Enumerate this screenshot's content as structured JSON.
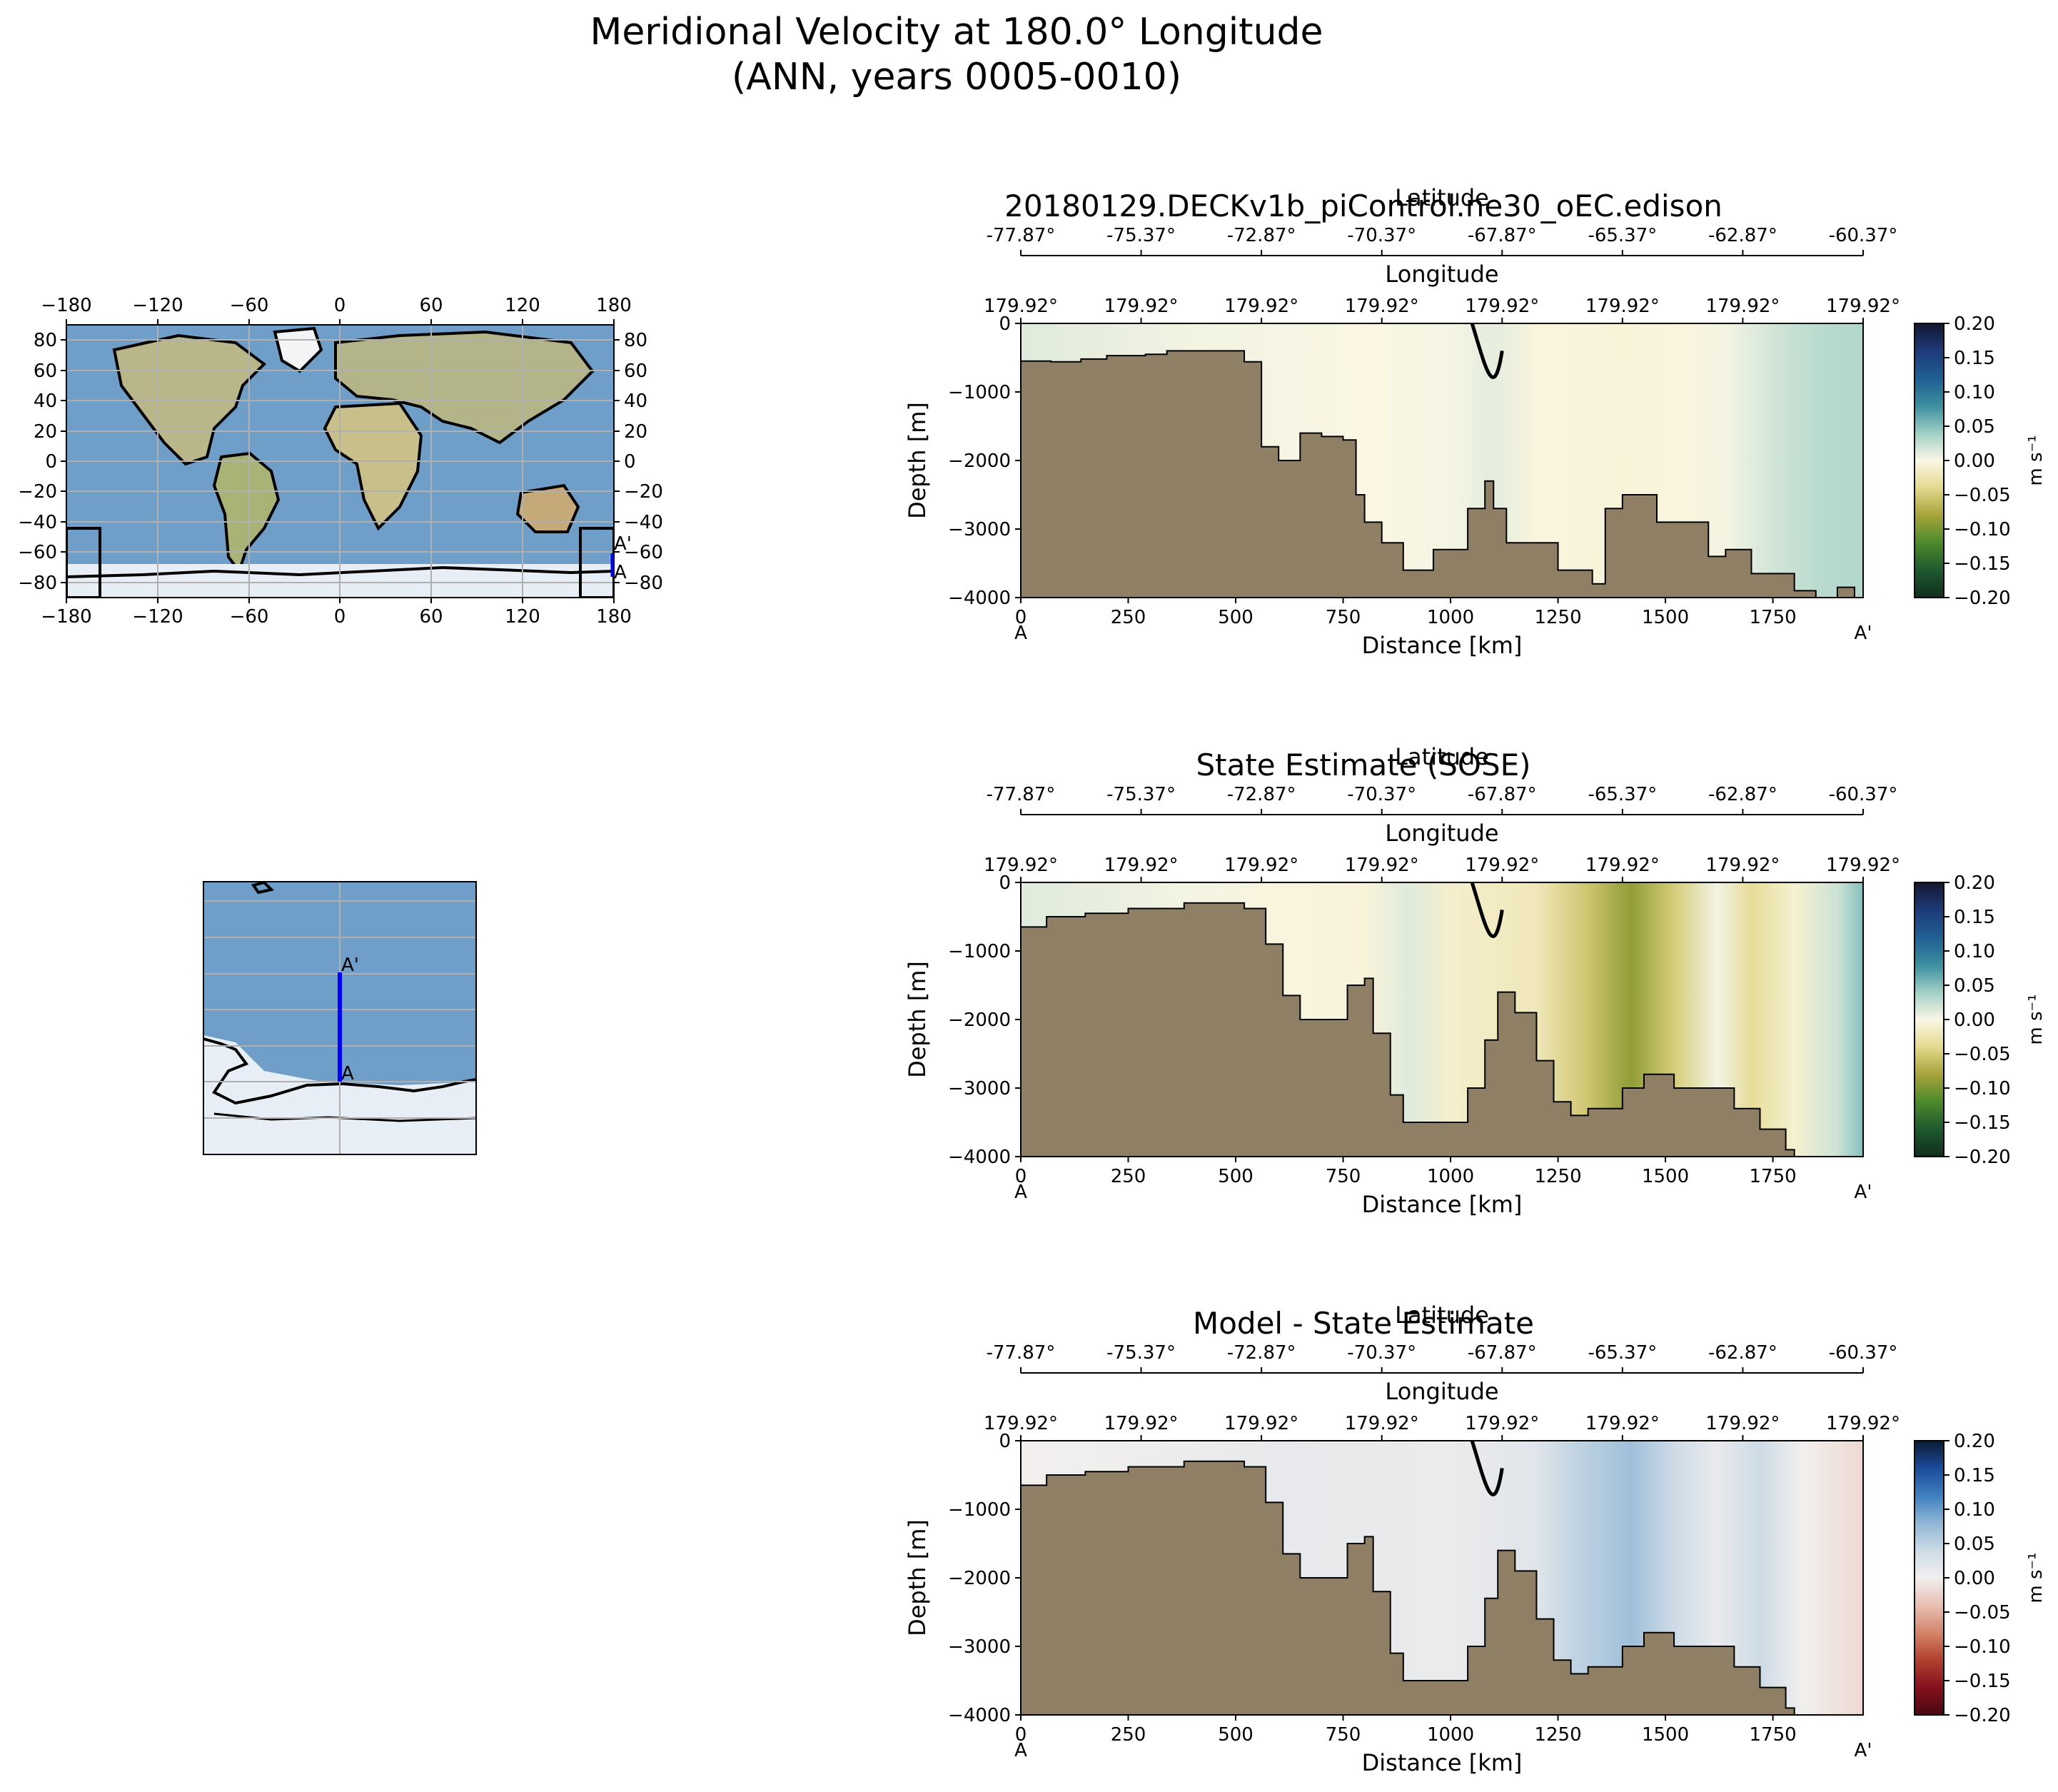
{
  "figure": {
    "title_line1": "Meridional Velocity at 180.0° Longitude",
    "title_line2": "(ANN, years 0005-0010)"
  },
  "colors": {
    "land": "#8f7f65",
    "ocean_map": "#6f9fc8",
    "ice": "#e8eef6",
    "transect": "#0000ff",
    "grid": "#b0b0b0"
  },
  "global_map": {
    "x_ticks": [
      "−180",
      "−120",
      "−60",
      "0",
      "60",
      "120",
      "180"
    ],
    "y_ticks": [
      "80",
      "60",
      "40",
      "20",
      "0",
      "−20",
      "−40",
      "−60",
      "−80"
    ],
    "label_a": "A",
    "label_a_prime": "A'"
  },
  "inset_map": {
    "label_a": "A",
    "label_a_prime": "A'"
  },
  "chart_data": [
    {
      "type": "heatmap",
      "id": "model",
      "title": "20180129.DECKv1b_piControl.ne30_oEC.edison",
      "xlabel": "Distance [km]",
      "ylabel": "Depth [m]",
      "top_axis1_label": "Latitude",
      "top_axis2_label": "Longitude",
      "xlim": [
        0,
        1960
      ],
      "ylim": [
        -4000,
        0
      ],
      "x_ticks": [
        "0",
        "250",
        "500",
        "750",
        "1000",
        "1250",
        "1500",
        "1750"
      ],
      "y_ticks": [
        "0",
        "−1000",
        "−2000",
        "−3000",
        "−4000"
      ],
      "lat_ticks": [
        "-77.87°",
        "-75.37°",
        "-72.87°",
        "-70.37°",
        "-67.87°",
        "-65.37°",
        "-62.87°",
        "-60.37°"
      ],
      "lon_ticks": [
        "179.92°",
        "179.92°",
        "179.92°",
        "179.92°",
        "179.92°",
        "179.92°",
        "179.92°",
        "179.92°"
      ],
      "end_labels": [
        "A",
        "A'"
      ],
      "colorbar": {
        "label": "m s⁻¹",
        "ticks": [
          "0.20",
          "0.15",
          "0.10",
          "0.05",
          "0.00",
          "−0.05",
          "−0.10",
          "−0.15",
          "−0.20"
        ],
        "colors": [
          "#14172f",
          "#1e3a7a",
          "#1f5f93",
          "#3b8ea0",
          "#9fcfc5",
          "#fbf7e6",
          "#e4d98e",
          "#a8a33a",
          "#4c8a2c",
          "#1d5a2e",
          "#102e1c"
        ]
      },
      "bathymetry": [
        [
          0,
          -550
        ],
        [
          70,
          -560
        ],
        [
          140,
          -520
        ],
        [
          200,
          -470
        ],
        [
          290,
          -450
        ],
        [
          340,
          -400
        ],
        [
          470,
          -400
        ],
        [
          520,
          -560
        ],
        [
          560,
          -1800
        ],
        [
          600,
          -2000
        ],
        [
          650,
          -1600
        ],
        [
          700,
          -1650
        ],
        [
          750,
          -1700
        ],
        [
          780,
          -2500
        ],
        [
          800,
          -2900
        ],
        [
          840,
          -3200
        ],
        [
          890,
          -3600
        ],
        [
          960,
          -3300
        ],
        [
          1000,
          -3300
        ],
        [
          1040,
          -2700
        ],
        [
          1080,
          -2300
        ],
        [
          1100,
          -2700
        ],
        [
          1130,
          -3200
        ],
        [
          1200,
          -3200
        ],
        [
          1250,
          -3600
        ],
        [
          1300,
          -3600
        ],
        [
          1330,
          -3800
        ],
        [
          1360,
          -2700
        ],
        [
          1400,
          -2500
        ],
        [
          1480,
          -2900
        ],
        [
          1570,
          -2900
        ],
        [
          1600,
          -3400
        ],
        [
          1640,
          -3300
        ],
        [
          1700,
          -3650
        ],
        [
          1760,
          -3650
        ],
        [
          1800,
          -3900
        ],
        [
          1850,
          -4000
        ],
        [
          1900,
          -3850
        ]
      ],
      "field": [
        [
          0,
          0.012
        ],
        [
          200,
          0.008
        ],
        [
          400,
          0.004
        ],
        [
          600,
          0.002
        ],
        [
          800,
          -0.002
        ],
        [
          1000,
          0.002
        ],
        [
          1100,
          0.01
        ],
        [
          1200,
          -0.004
        ],
        [
          1400,
          -0.006
        ],
        [
          1550,
          -0.004
        ],
        [
          1650,
          0.004
        ],
        [
          1750,
          0.018
        ],
        [
          1850,
          0.028
        ],
        [
          1960,
          0.032
        ]
      ]
    },
    {
      "type": "heatmap",
      "id": "obs",
      "title": "State Estimate (SOSE)",
      "xlabel": "Distance [km]",
      "ylabel": "Depth [m]",
      "top_axis1_label": "Latitude",
      "top_axis2_label": "Longitude",
      "xlim": [
        0,
        1960
      ],
      "ylim": [
        -4000,
        0
      ],
      "x_ticks": [
        "0",
        "250",
        "500",
        "750",
        "1000",
        "1250",
        "1500",
        "1750"
      ],
      "y_ticks": [
        "0",
        "−1000",
        "−2000",
        "−3000",
        "−4000"
      ],
      "lat_ticks": [
        "-77.87°",
        "-75.37°",
        "-72.87°",
        "-70.37°",
        "-67.87°",
        "-65.37°",
        "-62.87°",
        "-60.37°"
      ],
      "lon_ticks": [
        "179.92°",
        "179.92°",
        "179.92°",
        "179.92°",
        "179.92°",
        "179.92°",
        "179.92°",
        "179.92°"
      ],
      "end_labels": [
        "A",
        "A'"
      ],
      "colorbar": {
        "label": "m s⁻¹",
        "ticks": [
          "0.20",
          "0.15",
          "0.10",
          "0.05",
          "0.00",
          "−0.05",
          "−0.10",
          "−0.15",
          "−0.20"
        ],
        "colors": [
          "#14172f",
          "#1e3a7a",
          "#1f5f93",
          "#3b8ea0",
          "#9fcfc5",
          "#fbf7e6",
          "#e4d98e",
          "#a8a33a",
          "#4c8a2c",
          "#1d5a2e",
          "#102e1c"
        ]
      },
      "bathymetry": [
        [
          0,
          -650
        ],
        [
          60,
          -500
        ],
        [
          150,
          -450
        ],
        [
          250,
          -380
        ],
        [
          380,
          -300
        ],
        [
          480,
          -300
        ],
        [
          520,
          -380
        ],
        [
          570,
          -900
        ],
        [
          610,
          -1650
        ],
        [
          650,
          -2000
        ],
        [
          720,
          -2000
        ],
        [
          760,
          -1500
        ],
        [
          800,
          -1400
        ],
        [
          820,
          -2200
        ],
        [
          860,
          -3100
        ],
        [
          890,
          -3500
        ],
        [
          1020,
          -3500
        ],
        [
          1040,
          -3000
        ],
        [
          1080,
          -2300
        ],
        [
          1110,
          -1600
        ],
        [
          1150,
          -1900
        ],
        [
          1200,
          -2600
        ],
        [
          1240,
          -3200
        ],
        [
          1280,
          -3400
        ],
        [
          1320,
          -3300
        ],
        [
          1400,
          -3000
        ],
        [
          1450,
          -2800
        ],
        [
          1520,
          -3000
        ],
        [
          1600,
          -3000
        ],
        [
          1660,
          -3300
        ],
        [
          1720,
          -3600
        ],
        [
          1780,
          -3900
        ],
        [
          1800,
          -4000
        ]
      ],
      "field": [
        [
          0,
          0.012
        ],
        [
          200,
          0.008
        ],
        [
          400,
          0.003
        ],
        [
          600,
          -0.004
        ],
        [
          800,
          -0.006
        ],
        [
          900,
          0.012
        ],
        [
          1000,
          -0.012
        ],
        [
          1200,
          -0.02
        ],
        [
          1320,
          -0.055
        ],
        [
          1420,
          -0.09
        ],
        [
          1520,
          -0.05
        ],
        [
          1620,
          0.004
        ],
        [
          1700,
          -0.035
        ],
        [
          1800,
          -0.01
        ],
        [
          1900,
          0.02
        ],
        [
          1960,
          0.05
        ]
      ]
    },
    {
      "type": "heatmap",
      "id": "diff",
      "title": "Model - State Estimate",
      "xlabel": "Distance [km]",
      "ylabel": "Depth [m]",
      "top_axis1_label": "Latitude",
      "top_axis2_label": "Longitude",
      "xlim": [
        0,
        1960
      ],
      "ylim": [
        -4000,
        0
      ],
      "x_ticks": [
        "0",
        "250",
        "500",
        "750",
        "1000",
        "1250",
        "1500",
        "1750"
      ],
      "y_ticks": [
        "0",
        "−1000",
        "−2000",
        "−3000",
        "−4000"
      ],
      "lat_ticks": [
        "-77.87°",
        "-75.37°",
        "-72.87°",
        "-70.37°",
        "-67.87°",
        "-65.37°",
        "-62.87°",
        "-60.37°"
      ],
      "lon_ticks": [
        "179.92°",
        "179.92°",
        "179.92°",
        "179.92°",
        "179.92°",
        "179.92°",
        "179.92°",
        "179.92°"
      ],
      "end_labels": [
        "A",
        "A'"
      ],
      "colorbar": {
        "label": "m s⁻¹",
        "ticks": [
          "0.20",
          "0.15",
          "0.10",
          "0.05",
          "0.00",
          "−0.05",
          "−0.10",
          "−0.15",
          "−0.20"
        ],
        "colors": [
          "#0c1a36",
          "#1b4b9a",
          "#3f7fc0",
          "#8fb6d6",
          "#cddbe6",
          "#f2efee",
          "#e8c0b4",
          "#d4856a",
          "#b0402f",
          "#85111e",
          "#4b0712"
        ]
      },
      "bathymetry": [
        [
          0,
          -650
        ],
        [
          60,
          -500
        ],
        [
          150,
          -450
        ],
        [
          250,
          -380
        ],
        [
          380,
          -300
        ],
        [
          480,
          -300
        ],
        [
          520,
          -380
        ],
        [
          570,
          -900
        ],
        [
          610,
          -1650
        ],
        [
          650,
          -2000
        ],
        [
          720,
          -2000
        ],
        [
          760,
          -1500
        ],
        [
          800,
          -1400
        ],
        [
          820,
          -2200
        ],
        [
          860,
          -3100
        ],
        [
          890,
          -3500
        ],
        [
          1020,
          -3500
        ],
        [
          1040,
          -3000
        ],
        [
          1080,
          -2300
        ],
        [
          1110,
          -1600
        ],
        [
          1150,
          -1900
        ],
        [
          1200,
          -2600
        ],
        [
          1240,
          -3200
        ],
        [
          1280,
          -3400
        ],
        [
          1320,
          -3300
        ],
        [
          1400,
          -3000
        ],
        [
          1450,
          -2800
        ],
        [
          1520,
          -3000
        ],
        [
          1600,
          -3000
        ],
        [
          1660,
          -3300
        ],
        [
          1720,
          -3600
        ],
        [
          1780,
          -3900
        ],
        [
          1800,
          -4000
        ]
      ],
      "field": [
        [
          0,
          0.0
        ],
        [
          300,
          0.004
        ],
        [
          600,
          0.012
        ],
        [
          800,
          0.01
        ],
        [
          1000,
          0.008
        ],
        [
          1200,
          0.02
        ],
        [
          1300,
          0.05
        ],
        [
          1420,
          0.07
        ],
        [
          1520,
          0.04
        ],
        [
          1620,
          0.01
        ],
        [
          1720,
          0.04
        ],
        [
          1820,
          0.0
        ],
        [
          1960,
          -0.02
        ]
      ]
    }
  ]
}
